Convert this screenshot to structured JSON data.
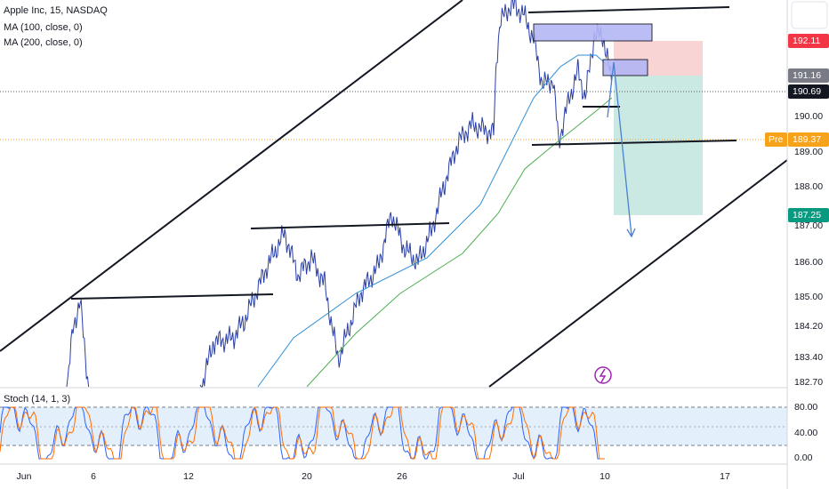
{
  "legend": {
    "symbol": "Apple Inc, 15, NASDAQ",
    "ma100": "MA (100, close, 0)",
    "ma200": "MA (200, close, 0)",
    "stoch": "Stoch (14, 1, 3)"
  },
  "price_axis": [
    "190.00",
    "189.00",
    "188.00",
    "187.00",
    "186.00",
    "185.00",
    "184.20",
    "183.40",
    "182.70"
  ],
  "badges": {
    "stop": "192.11",
    "entry": "191.16",
    "last": "190.69",
    "pre_tag": "Pre",
    "pre": "189.37",
    "target": "187.25"
  },
  "time_axis": [
    "Jun",
    "6",
    "12",
    "20",
    "26",
    "Jul",
    "10",
    "17"
  ],
  "stoch_axis": [
    "80.00",
    "40.00",
    "0.00"
  ]
}
